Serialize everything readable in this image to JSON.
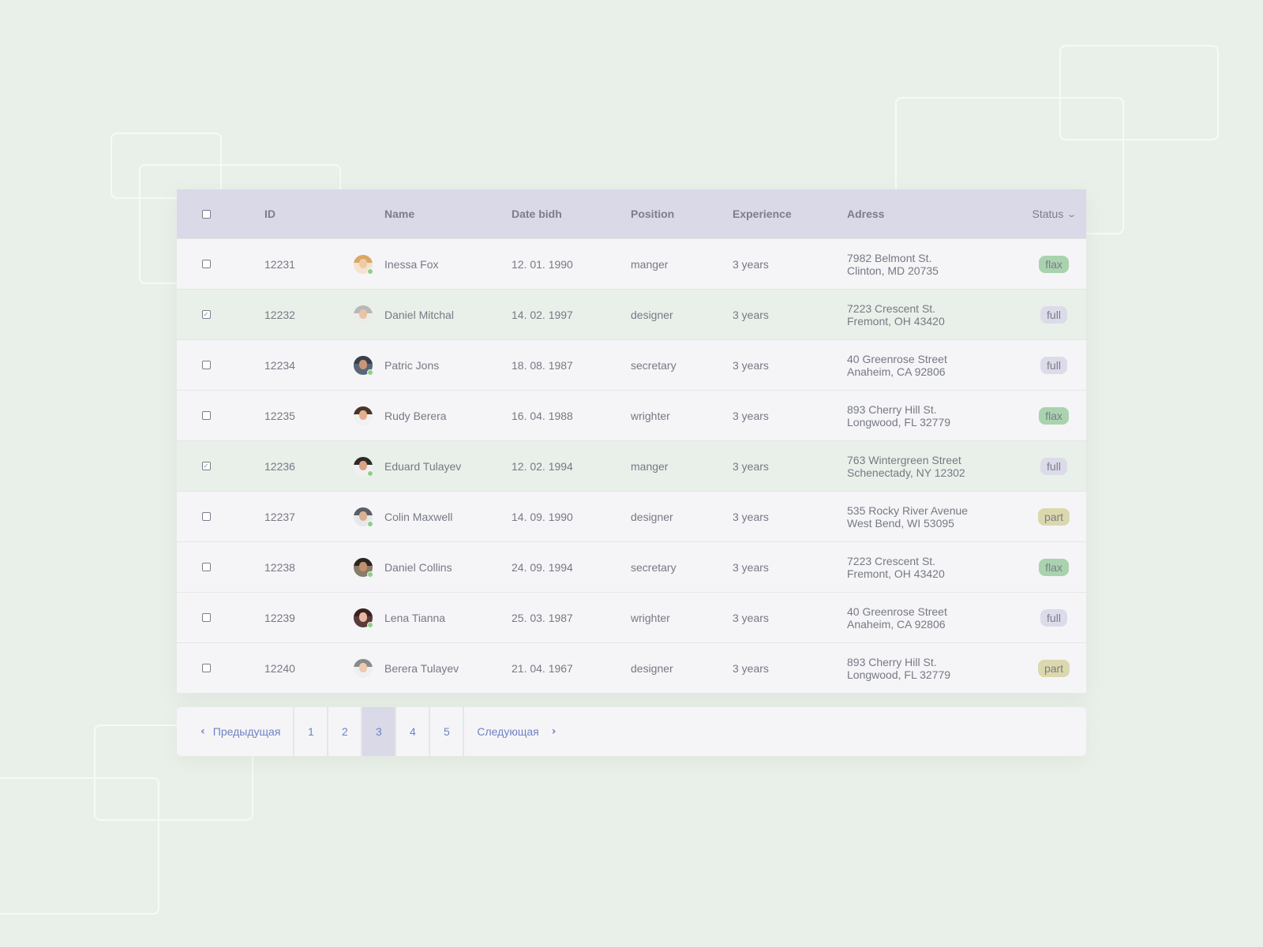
{
  "colors": {
    "background": "#e9f0e9",
    "header_bg": "#d9d9e8",
    "row_bg": "#f5f5f7",
    "selected_row_bg": "#e9f0e9",
    "link_blue": "#6f82c4",
    "badge_flax": "#a9d3ae",
    "badge_full": "#dcdbe9",
    "badge_part": "#dcd8ad"
  },
  "table": {
    "headers": {
      "id": "ID",
      "name": "Name",
      "date": "Date bidh",
      "position": "Position",
      "experience": "Experience",
      "address": "Adress",
      "status": "Status"
    },
    "status_sort_icon": "chevron-down-icon",
    "rows": [
      {
        "checked": false,
        "id": "12231",
        "name": "Inessa Fox",
        "date": "12. 01. 1990",
        "position": "manger",
        "experience": "3 years",
        "address_line1": "7982 Belmont St.",
        "address_line2": "Clinton, MD 20735",
        "status": "flax"
      },
      {
        "checked": true,
        "id": "12232",
        "name": "Daniel Mitchal",
        "date": "14. 02. 1997",
        "position": "designer",
        "experience": "3 years",
        "address_line1": "7223 Crescent St.",
        "address_line2": "Fremont, OH 43420",
        "status": "full"
      },
      {
        "checked": false,
        "id": "12234",
        "name": "Patric Jons",
        "date": "18. 08. 1987",
        "position": "secretary",
        "experience": "3 years",
        "address_line1": "40 Greenrose Street",
        "address_line2": "Anaheim, CA 92806",
        "status": "full"
      },
      {
        "checked": false,
        "id": "12235",
        "name": "Rudy Berera",
        "date": "16. 04. 1988",
        "position": "wrighter",
        "experience": "3 years",
        "address_line1": "893 Cherry Hill St.",
        "address_line2": "Longwood, FL 32779",
        "status": "flax"
      },
      {
        "checked": true,
        "id": "12236",
        "name": "Eduard Tulayev",
        "date": "12. 02. 1994",
        "position": "manger",
        "experience": "3 years",
        "address_line1": "763 Wintergreen Street",
        "address_line2": "Schenectady, NY 12302",
        "status": "full"
      },
      {
        "checked": false,
        "id": "12237",
        "name": "Colin Maxwell",
        "date": "14. 09. 1990",
        "position": "designer",
        "experience": "3 years",
        "address_line1": "535 Rocky River Avenue",
        "address_line2": "West Bend, WI 53095",
        "status": "part"
      },
      {
        "checked": false,
        "id": "12238",
        "name": "Daniel Collins",
        "date": "24. 09. 1994",
        "position": "secretary",
        "experience": "3 years",
        "address_line1": "7223 Crescent St.",
        "address_line2": "Fremont, OH 43420",
        "status": "flax"
      },
      {
        "checked": false,
        "id": "12239",
        "name": "Lena Tianna",
        "date": "25. 03. 1987",
        "position": "wrighter",
        "experience": "3 years",
        "address_line1": "40 Greenrose Street",
        "address_line2": "Anaheim, CA 92806",
        "status": "full"
      },
      {
        "checked": false,
        "id": "12240",
        "name": "Berera Tulayev",
        "date": "21. 04. 1967",
        "position": "designer",
        "experience": "3 years",
        "address_line1": "893 Cherry Hill St.",
        "address_line2": "Longwood, FL 32779",
        "status": "part"
      }
    ]
  },
  "avatars": [
    {
      "hair": "#d9a862",
      "skin": "#f2c9a8",
      "bg": "#f4e3cf",
      "online": true
    },
    {
      "hair": "#b8b8b8",
      "skin": "#e8c4a6",
      "bg": "#ececec",
      "online": false
    },
    {
      "hair": "#3a3f4a",
      "skin": "#c99676",
      "bg": "#59657a",
      "online": true
    },
    {
      "hair": "#4a3528",
      "skin": "#e2b08f",
      "bg": "#f1f1f1",
      "online": false
    },
    {
      "hair": "#2f2a26",
      "skin": "#d7a585",
      "bg": "#f0f0f0",
      "online": true
    },
    {
      "hair": "#5a5e66",
      "skin": "#d9b196",
      "bg": "#e6e8ea",
      "online": true
    },
    {
      "hair": "#2b2621",
      "skin": "#c2906d",
      "bg": "#8a7c6a",
      "online": true
    },
    {
      "hair": "#3a2222",
      "skin": "#e7b79f",
      "bg": "#5a3a3a",
      "online": true
    },
    {
      "hair": "#8a8a8a",
      "skin": "#ecc9b0",
      "bg": "#efeff2",
      "online": false
    }
  ],
  "pagination": {
    "prev_label": "Предыдущая",
    "next_label": "Следующая",
    "pages": [
      "1",
      "2",
      "3",
      "4",
      "5"
    ],
    "current": "3"
  }
}
